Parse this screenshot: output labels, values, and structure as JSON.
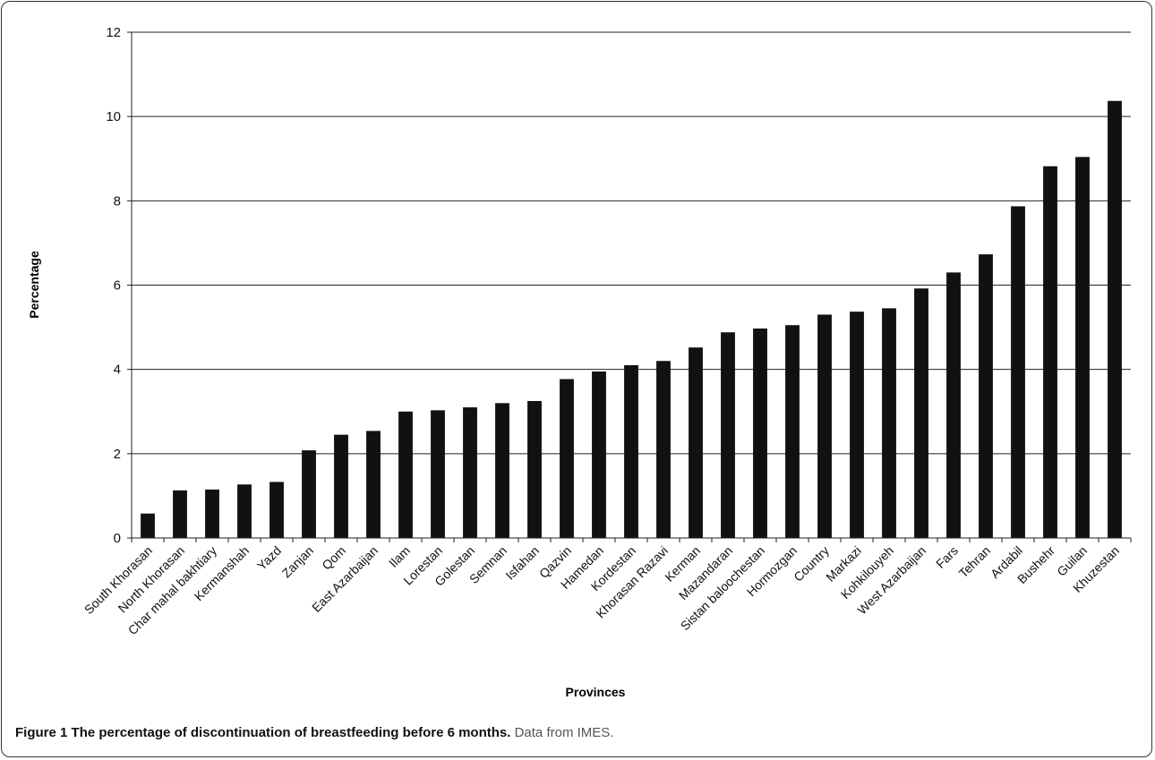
{
  "chart_data": {
    "type": "bar",
    "xlabel": "Provinces",
    "ylabel": "Percentage",
    "ylim": [
      0,
      12
    ],
    "yticks": [
      0,
      2,
      4,
      6,
      8,
      10,
      12
    ],
    "grid": true,
    "bar_color": "#111111",
    "categories": [
      "South Khorasan",
      "North Khorasan",
      "Char mahal bakhtiary",
      "Kermanshah",
      "Yazd",
      "Zanjan",
      "Qom",
      "East Azarbaijan",
      "Ilam",
      "Lorestan",
      "Golestan",
      "Semnan",
      "Isfahan",
      "Qazvin",
      "Hamedan",
      "Kordestan",
      "Khorasan Razavi",
      "Kerman",
      "Mazandaran",
      "Sistan baloochestan",
      "Hormozgan",
      "Country",
      "Markazi",
      "Kohkilouyeh",
      "West Azarbaijan",
      "Fars",
      "Tehran",
      "Ardabil",
      "Bushehr",
      "Guilan",
      "Khuzestan"
    ],
    "values": [
      0.58,
      1.13,
      1.15,
      1.27,
      1.33,
      2.08,
      2.45,
      2.54,
      3.0,
      3.03,
      3.1,
      3.2,
      3.25,
      3.77,
      3.95,
      4.1,
      4.2,
      4.52,
      4.88,
      4.97,
      5.05,
      5.3,
      5.37,
      5.45,
      5.92,
      6.3,
      6.73,
      7.87,
      8.82,
      9.04,
      10.37
    ]
  },
  "caption": {
    "figure_label": "Figure 1",
    "title": "The percentage of discontinuation of breastfeeding before 6 months.",
    "source": "Data from IMES."
  }
}
